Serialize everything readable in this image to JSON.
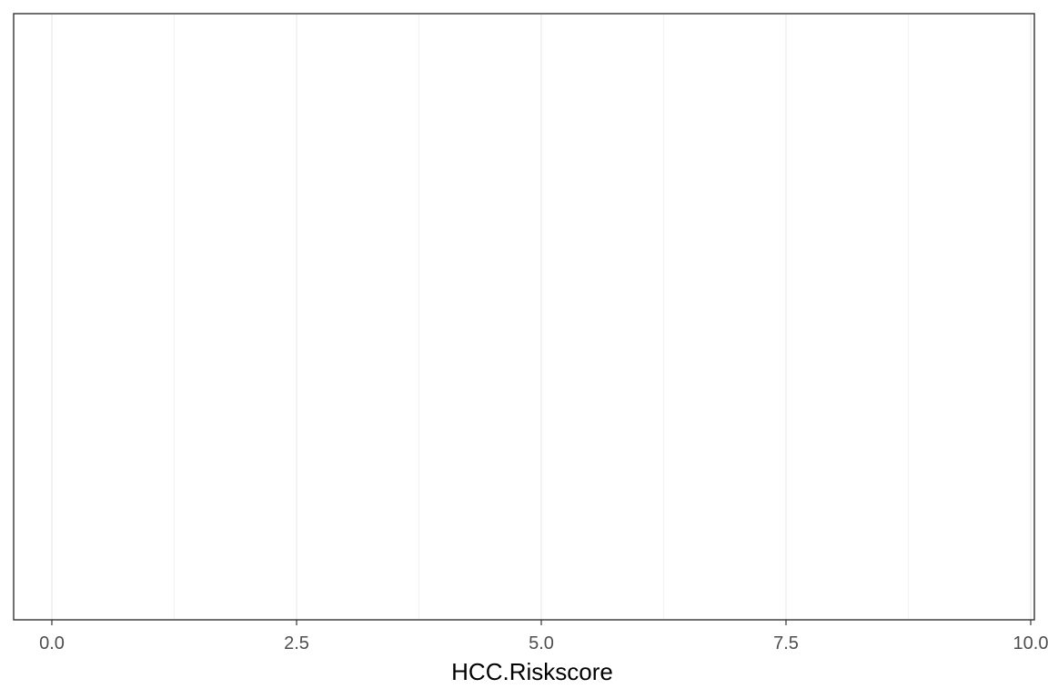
{
  "chart_data": {
    "type": "bar",
    "title": "",
    "xlabel": "HCC.Riskscore",
    "ylabel": "",
    "xlim": [
      -0.78,
      10.0
    ],
    "x_ticks": [
      0.0,
      2.5,
      5.0,
      7.5,
      10.0
    ],
    "x_tick_labels": [
      "0.0",
      "2.5",
      "5.0",
      "7.5",
      "10.0"
    ],
    "x_minor_ticks": [
      1.25,
      3.75,
      6.25,
      8.75
    ],
    "series": [],
    "grid": true,
    "grid_axis": "x",
    "legend": "none",
    "colors": {
      "panel_border": "#333333",
      "grid_major": "#ebebeb",
      "grid_minor": "#f2f2f2",
      "tick_label": "#4d4d4d",
      "axis_title": "#000000"
    }
  }
}
